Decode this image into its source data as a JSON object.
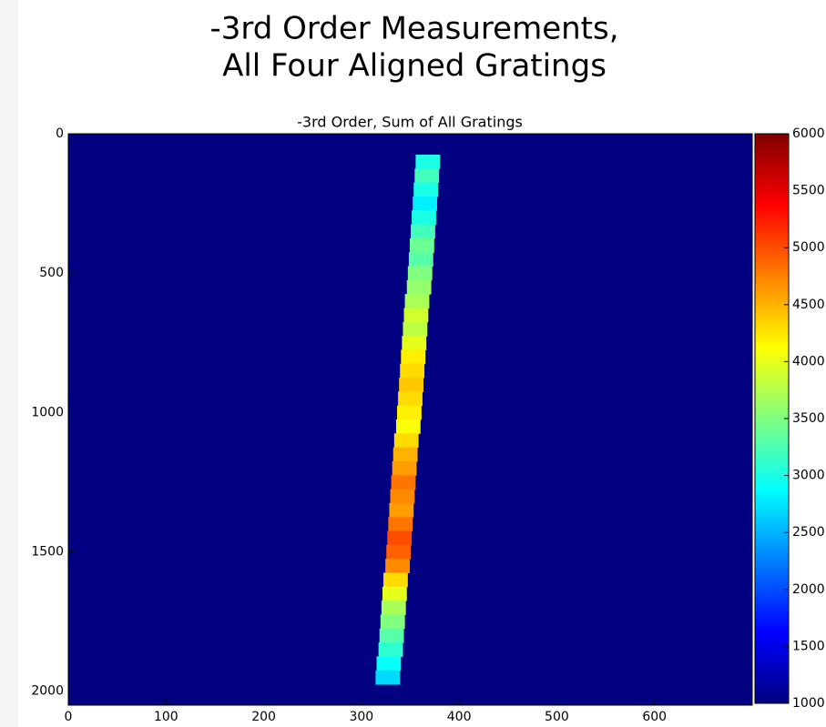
{
  "chart_data": {
    "type": "heatmap",
    "title": [
      "-3rd Order Measurements,",
      "All Four Aligned Gratings"
    ],
    "subtitle": "-3rd Order, Sum of All Gratings",
    "xlim": [
      0,
      700
    ],
    "xticks": [
      0,
      100,
      200,
      300,
      400,
      500,
      600
    ],
    "ylim": [
      0,
      2050
    ],
    "yticks": [
      0,
      500,
      1000,
      1500,
      2000
    ],
    "y_inverted": true,
    "clim": [
      1000,
      6000
    ],
    "cticks": [
      1000,
      1500,
      2000,
      2500,
      3000,
      3500,
      4000,
      4500,
      5000,
      5500,
      6000
    ],
    "colormap": "jet",
    "background_value": 1000,
    "band_width": 25,
    "row_height": 50,
    "y": [
      100,
      150,
      200,
      250,
      300,
      350,
      400,
      450,
      500,
      550,
      600,
      650,
      700,
      750,
      800,
      850,
      900,
      950,
      1000,
      1050,
      1100,
      1150,
      1200,
      1250,
      1300,
      1350,
      1400,
      1450,
      1500,
      1550,
      1600,
      1650,
      1700,
      1750,
      1800,
      1850,
      1900,
      1950
    ],
    "x": [
      368,
      367,
      366,
      365,
      364,
      363,
      362,
      361,
      360,
      359,
      357,
      356,
      355,
      354,
      353,
      352,
      351,
      350,
      349,
      348,
      346,
      345,
      344,
      343,
      342,
      341,
      340,
      339,
      338,
      337,
      335,
      334,
      333,
      332,
      331,
      330,
      328,
      327
    ],
    "values": [
      3000,
      3200,
      3000,
      2800,
      3000,
      3200,
      3400,
      3300,
      3500,
      3600,
      3700,
      3900,
      3800,
      4000,
      4200,
      4300,
      4400,
      4300,
      4200,
      4100,
      4300,
      4500,
      4600,
      4800,
      4700,
      4600,
      4800,
      5000,
      4900,
      4700,
      4300,
      4000,
      3700,
      3500,
      3300,
      3100,
      2900,
      2700
    ]
  }
}
